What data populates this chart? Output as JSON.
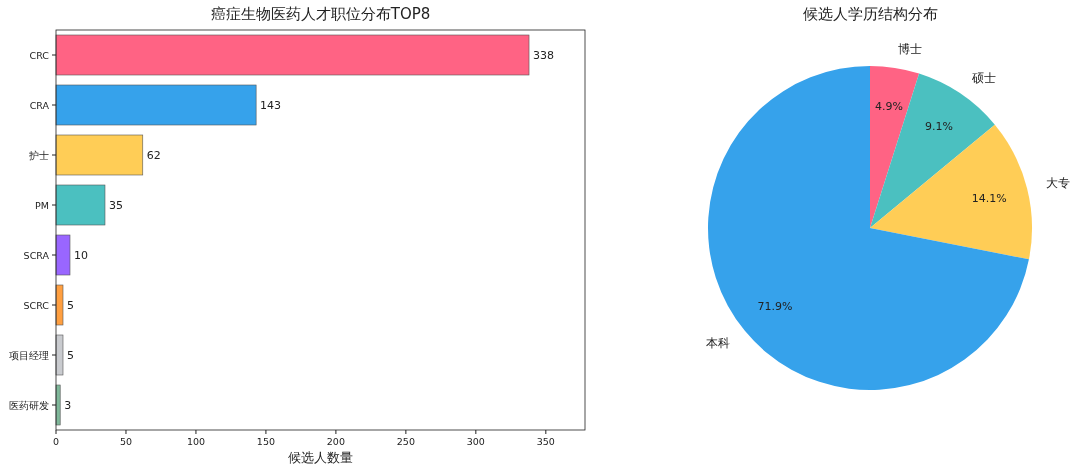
{
  "chart_data": [
    {
      "type": "bar",
      "orientation": "horizontal",
      "title": "癌症生物医药人才职位分布TOP8",
      "xlabel": "候选人数量",
      "categories": [
        "CRC",
        "CRA",
        "护士",
        "PM",
        "SCRA",
        "SCRC",
        "项目经理",
        "医药研发"
      ],
      "values": [
        338,
        143,
        62,
        35,
        10,
        5,
        5,
        3
      ],
      "colors": [
        "#ff6384",
        "#36a2eb",
        "#ffcd56",
        "#4bc0c0",
        "#9966ff",
        "#ff9f40",
        "#c9cbcf",
        "#7fb89a"
      ],
      "xlim": [
        0,
        378
      ],
      "xticks": [
        0,
        50,
        100,
        150,
        200,
        250,
        300,
        350
      ],
      "data_labels": true,
      "grid": false
    },
    {
      "type": "pie",
      "title": "候选人学历结构分布",
      "categories": [
        "博士",
        "硕士",
        "大专",
        "本科"
      ],
      "values": [
        4.9,
        9.1,
        14.1,
        71.9
      ],
      "value_labels": [
        "4.9%",
        "9.1%",
        "14.1%",
        "71.9%"
      ],
      "colors": [
        "#ff6384",
        "#4bc0c0",
        "#ffcd56",
        "#36a2eb"
      ]
    }
  ]
}
